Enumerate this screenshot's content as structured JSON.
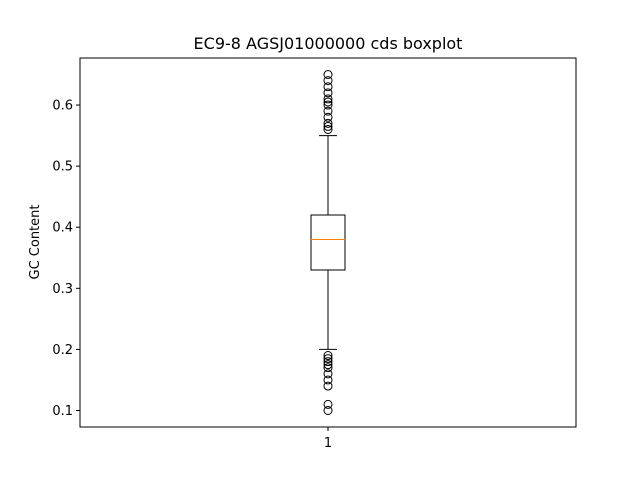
{
  "chart_data": {
    "type": "boxplot",
    "title": "EC9-8 AGSJ01000000 cds boxplot",
    "xlabel": "",
    "ylabel": "GC Content",
    "ylim": [
      0.073,
      0.677
    ],
    "yticks": [
      0.1,
      0.2,
      0.3,
      0.4,
      0.5,
      0.6
    ],
    "ytick_labels": [
      "0.1",
      "0.2",
      "0.3",
      "0.4",
      "0.5",
      "0.6"
    ],
    "categories": [
      "1"
    ],
    "grid": false,
    "boxes": [
      {
        "label": "1",
        "whisker_low": 0.2,
        "q1": 0.33,
        "median": 0.38,
        "q3": 0.42,
        "whisker_high": 0.55,
        "outliers": [
          0.1,
          0.11,
          0.14,
          0.15,
          0.16,
          0.17,
          0.175,
          0.18,
          0.185,
          0.19,
          0.56,
          0.565,
          0.57,
          0.58,
          0.59,
          0.6,
          0.605,
          0.61,
          0.62,
          0.63,
          0.64,
          0.65
        ]
      }
    ],
    "colors": {
      "box": "#000000",
      "median": "#ff7f0e",
      "outlier": "#000000"
    }
  }
}
